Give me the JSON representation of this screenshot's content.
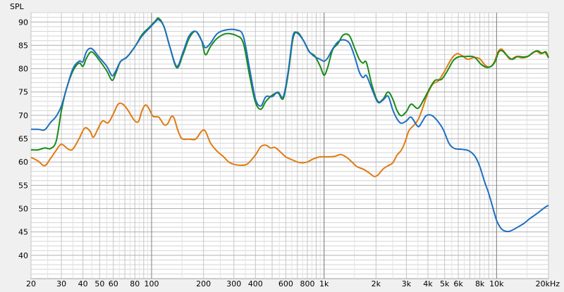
{
  "chart_data": {
    "type": "line",
    "title": "",
    "ylabel": "SPL",
    "xlabel": "",
    "xscale": "log",
    "xlim": [
      20,
      20000
    ],
    "ylim": [
      35,
      92
    ],
    "grid": true,
    "legend": "none",
    "yticks": [
      40,
      45,
      50,
      55,
      60,
      65,
      70,
      75,
      80,
      85,
      90
    ],
    "xticks": [
      {
        "v": 20,
        "label": "20"
      },
      {
        "v": 30,
        "label": "30"
      },
      {
        "v": 40,
        "label": "40"
      },
      {
        "v": 50,
        "label": "50"
      },
      {
        "v": 60,
        "label": "60"
      },
      {
        "v": 80,
        "label": "80"
      },
      {
        "v": 100,
        "label": "100"
      },
      {
        "v": 200,
        "label": "200"
      },
      {
        "v": 300,
        "label": "300"
      },
      {
        "v": 400,
        "label": "400"
      },
      {
        "v": 600,
        "label": "600"
      },
      {
        "v": 800,
        "label": "800"
      },
      {
        "v": 1000,
        "label": "1k"
      },
      {
        "v": 2000,
        "label": "2k"
      },
      {
        "v": 3000,
        "label": "3k"
      },
      {
        "v": 4000,
        "label": "4k"
      },
      {
        "v": 5000,
        "label": "5k"
      },
      {
        "v": 6000,
        "label": "6k"
      },
      {
        "v": 8000,
        "label": "8k"
      },
      {
        "v": 10000,
        "label": "10k"
      },
      {
        "v": 20000,
        "label": "20kHz"
      }
    ],
    "series": [
      {
        "color": "#e07b12",
        "points": [
          [
            20,
            61
          ],
          [
            22,
            60.2
          ],
          [
            24,
            59.2
          ],
          [
            26,
            60.8
          ],
          [
            28,
            62.5
          ],
          [
            30,
            63.8
          ],
          [
            33,
            62.7
          ],
          [
            35,
            62.8
          ],
          [
            38,
            65
          ],
          [
            41,
            67.3
          ],
          [
            44,
            66.6
          ],
          [
            46,
            65.3
          ],
          [
            49,
            67.2
          ],
          [
            52,
            68.8
          ],
          [
            56,
            68.4
          ],
          [
            60,
            70.3
          ],
          [
            64,
            72.4
          ],
          [
            68,
            72.4
          ],
          [
            72,
            71.4
          ],
          [
            76,
            70
          ],
          [
            80,
            68.8
          ],
          [
            84,
            68.7
          ],
          [
            88,
            71
          ],
          [
            92,
            72.2
          ],
          [
            96,
            71.6
          ],
          [
            102,
            69.8
          ],
          [
            110,
            69.6
          ],
          [
            118,
            68
          ],
          [
            124,
            68.2
          ],
          [
            130,
            69.7
          ],
          [
            135,
            69.4
          ],
          [
            142,
            66.8
          ],
          [
            150,
            65
          ],
          [
            165,
            64.9
          ],
          [
            180,
            64.9
          ],
          [
            195,
            66.6
          ],
          [
            205,
            66.6
          ],
          [
            220,
            64
          ],
          [
            240,
            62.3
          ],
          [
            260,
            61.2
          ],
          [
            280,
            60
          ],
          [
            300,
            59.5
          ],
          [
            330,
            59.3
          ],
          [
            360,
            59.6
          ],
          [
            400,
            61.5
          ],
          [
            430,
            63.3
          ],
          [
            460,
            63.6
          ],
          [
            490,
            63
          ],
          [
            520,
            63.1
          ],
          [
            560,
            62.1
          ],
          [
            600,
            61.1
          ],
          [
            650,
            60.5
          ],
          [
            700,
            60
          ],
          [
            750,
            59.8
          ],
          [
            800,
            60
          ],
          [
            860,
            60.6
          ],
          [
            950,
            61.1
          ],
          [
            1050,
            61.1
          ],
          [
            1150,
            61.2
          ],
          [
            1250,
            61.6
          ],
          [
            1350,
            61
          ],
          [
            1450,
            60
          ],
          [
            1550,
            59
          ],
          [
            1700,
            58.4
          ],
          [
            1850,
            57.5
          ],
          [
            1950,
            56.9
          ],
          [
            2050,
            57.2
          ],
          [
            2200,
            58.5
          ],
          [
            2350,
            59.2
          ],
          [
            2500,
            59.8
          ],
          [
            2650,
            61.5
          ],
          [
            2800,
            62.5
          ],
          [
            2950,
            64.3
          ],
          [
            3100,
            66.7
          ],
          [
            3300,
            67.8
          ],
          [
            3500,
            69
          ],
          [
            3700,
            71.2
          ],
          [
            3900,
            73.7
          ],
          [
            4100,
            75.6
          ],
          [
            4300,
            76.8
          ],
          [
            4600,
            77.4
          ],
          [
            5000,
            79.5
          ],
          [
            5500,
            82.2
          ],
          [
            5900,
            83.2
          ],
          [
            6300,
            82.8
          ],
          [
            6800,
            82
          ],
          [
            7400,
            82.4
          ],
          [
            8000,
            82.1
          ],
          [
            8600,
            80.7
          ],
          [
            9200,
            80.4
          ],
          [
            9700,
            81.4
          ],
          [
            10200,
            83.6
          ],
          [
            10700,
            84.2
          ],
          [
            11300,
            83.2
          ],
          [
            12000,
            82
          ],
          [
            13000,
            82.6
          ],
          [
            14000,
            82.3
          ],
          [
            15000,
            82.5
          ],
          [
            16000,
            83.2
          ],
          [
            17000,
            83.7
          ],
          [
            18000,
            83.2
          ],
          [
            19000,
            83.5
          ],
          [
            20000,
            82.4
          ]
        ]
      },
      {
        "color": "#1a8a1a",
        "points": [
          [
            20,
            62.6
          ],
          [
            22,
            62.6
          ],
          [
            24,
            63
          ],
          [
            26,
            62.9
          ],
          [
            28,
            64.5
          ],
          [
            30,
            71
          ],
          [
            32,
            75.5
          ],
          [
            35,
            79.5
          ],
          [
            38,
            81.2
          ],
          [
            40,
            80.5
          ],
          [
            42,
            82.3
          ],
          [
            45,
            83.6
          ],
          [
            50,
            81.7
          ],
          [
            55,
            79.5
          ],
          [
            59,
            77.5
          ],
          [
            62,
            79
          ],
          [
            66,
            81.5
          ],
          [
            72,
            82.5
          ],
          [
            80,
            84.7
          ],
          [
            88,
            87.3
          ],
          [
            96,
            88.7
          ],
          [
            105,
            90.2
          ],
          [
            110,
            90.8
          ],
          [
            118,
            89
          ],
          [
            128,
            84.5
          ],
          [
            140,
            80.2
          ],
          [
            152,
            83
          ],
          [
            165,
            86.5
          ],
          [
            180,
            88
          ],
          [
            195,
            86
          ],
          [
            205,
            83
          ],
          [
            220,
            84.8
          ],
          [
            240,
            86.5
          ],
          [
            270,
            87.5
          ],
          [
            310,
            87.1
          ],
          [
            340,
            85.5
          ],
          [
            370,
            78.5
          ],
          [
            400,
            72.8
          ],
          [
            430,
            71.3
          ],
          [
            460,
            73
          ],
          [
            500,
            74.3
          ],
          [
            540,
            74.8
          ],
          [
            580,
            73.6
          ],
          [
            620,
            79
          ],
          [
            660,
            86.4
          ],
          [
            700,
            87.8
          ],
          [
            760,
            86
          ],
          [
            820,
            83.6
          ],
          [
            880,
            82.8
          ],
          [
            950,
            80.5
          ],
          [
            1000,
            78.6
          ],
          [
            1050,
            80.3
          ],
          [
            1120,
            84
          ],
          [
            1200,
            85.3
          ],
          [
            1290,
            87.2
          ],
          [
            1400,
            87.1
          ],
          [
            1500,
            84.5
          ],
          [
            1600,
            82
          ],
          [
            1680,
            81.2
          ],
          [
            1760,
            81.3
          ],
          [
            1900,
            76.3
          ],
          [
            2050,
            73
          ],
          [
            2200,
            73.5
          ],
          [
            2350,
            75
          ],
          [
            2500,
            73.5
          ],
          [
            2650,
            71
          ],
          [
            2800,
            69.9
          ],
          [
            3000,
            70.8
          ],
          [
            3200,
            72.4
          ],
          [
            3500,
            71.5
          ],
          [
            3800,
            73.5
          ],
          [
            4100,
            75.8
          ],
          [
            4400,
            77.5
          ],
          [
            4800,
            77.7
          ],
          [
            5200,
            79.6
          ],
          [
            5600,
            81.7
          ],
          [
            6000,
            82.5
          ],
          [
            6600,
            82.6
          ],
          [
            7400,
            82.5
          ],
          [
            8100,
            81
          ],
          [
            8700,
            80.3
          ],
          [
            9300,
            80.5
          ],
          [
            9800,
            81.5
          ],
          [
            10300,
            83.6
          ],
          [
            10800,
            83.8
          ],
          [
            11500,
            82.8
          ],
          [
            12300,
            82
          ],
          [
            13200,
            82.6
          ],
          [
            14200,
            82.5
          ],
          [
            15300,
            82.7
          ],
          [
            16300,
            83.5
          ],
          [
            17300,
            83.8
          ],
          [
            18400,
            83.3
          ],
          [
            19300,
            83.6
          ],
          [
            20000,
            82.3
          ]
        ]
      },
      {
        "color": "#1f6fbf",
        "points": [
          [
            20,
            67
          ],
          [
            22,
            67
          ],
          [
            24,
            66.9
          ],
          [
            26,
            68.5
          ],
          [
            28,
            69.8
          ],
          [
            30,
            72
          ],
          [
            32,
            75.5
          ],
          [
            35,
            80
          ],
          [
            38,
            81.6
          ],
          [
            40,
            81.5
          ],
          [
            42,
            83.7
          ],
          [
            45,
            84.3
          ],
          [
            50,
            82.3
          ],
          [
            55,
            80.5
          ],
          [
            59,
            78.5
          ],
          [
            62,
            79.5
          ],
          [
            66,
            81.5
          ],
          [
            72,
            82.5
          ],
          [
            80,
            84.7
          ],
          [
            88,
            87
          ],
          [
            96,
            88.5
          ],
          [
            105,
            90
          ],
          [
            110,
            90.5
          ],
          [
            118,
            89
          ],
          [
            128,
            84.5
          ],
          [
            140,
            80.5
          ],
          [
            152,
            83.5
          ],
          [
            165,
            87
          ],
          [
            180,
            88
          ],
          [
            195,
            86
          ],
          [
            205,
            84.5
          ],
          [
            220,
            85.5
          ],
          [
            240,
            87.5
          ],
          [
            270,
            88.3
          ],
          [
            310,
            88.3
          ],
          [
            340,
            87
          ],
          [
            370,
            80
          ],
          [
            400,
            73.5
          ],
          [
            430,
            72
          ],
          [
            460,
            74
          ],
          [
            500,
            74
          ],
          [
            540,
            75
          ],
          [
            580,
            74
          ],
          [
            620,
            79.5
          ],
          [
            660,
            87
          ],
          [
            700,
            87.6
          ],
          [
            760,
            86
          ],
          [
            820,
            83.7
          ],
          [
            880,
            82.6
          ],
          [
            950,
            82
          ],
          [
            1000,
            81.6
          ],
          [
            1050,
            82.3
          ],
          [
            1120,
            84.2
          ],
          [
            1200,
            85.7
          ],
          [
            1290,
            86.2
          ],
          [
            1400,
            85.5
          ],
          [
            1500,
            82.7
          ],
          [
            1600,
            79.3
          ],
          [
            1680,
            78.1
          ],
          [
            1760,
            78.5
          ],
          [
            1900,
            75.5
          ],
          [
            2050,
            72.8
          ],
          [
            2200,
            73.3
          ],
          [
            2350,
            74.1
          ],
          [
            2500,
            71.2
          ],
          [
            2650,
            69.2
          ],
          [
            2800,
            68.3
          ],
          [
            3000,
            68.8
          ],
          [
            3200,
            69.6
          ],
          [
            3500,
            67.6
          ],
          [
            3700,
            68.6
          ],
          [
            3900,
            69.9
          ],
          [
            4200,
            70
          ],
          [
            4500,
            69
          ],
          [
            4900,
            67
          ],
          [
            5300,
            64
          ],
          [
            5700,
            62.9
          ],
          [
            6300,
            62.7
          ],
          [
            6900,
            62.4
          ],
          [
            7500,
            61.2
          ],
          [
            8000,
            59
          ],
          [
            8500,
            55.9
          ],
          [
            9000,
            53.3
          ],
          [
            9500,
            50.3
          ],
          [
            10000,
            47.5
          ],
          [
            10500,
            46
          ],
          [
            11000,
            45.3
          ],
          [
            11700,
            45.1
          ],
          [
            12500,
            45.5
          ],
          [
            13500,
            46.2
          ],
          [
            14500,
            46.9
          ],
          [
            15500,
            47.8
          ],
          [
            16500,
            48.5
          ],
          [
            17500,
            49.2
          ],
          [
            18500,
            49.9
          ],
          [
            19300,
            50.4
          ],
          [
            20000,
            50.7
          ]
        ]
      }
    ]
  }
}
